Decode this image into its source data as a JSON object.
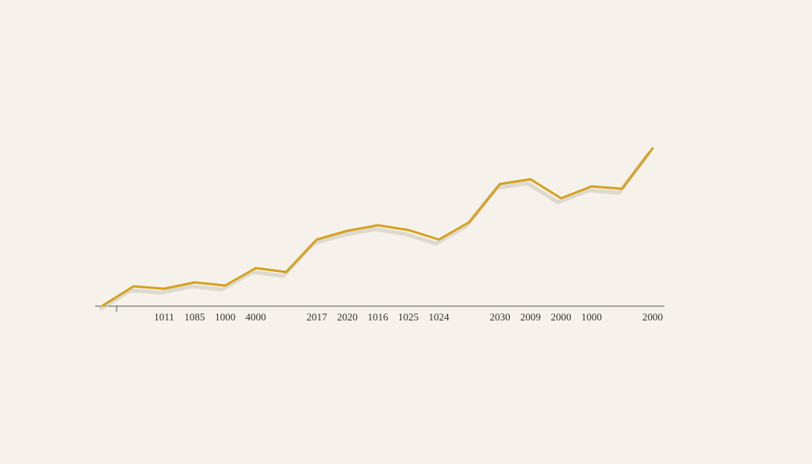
{
  "chart_data": {
    "type": "line",
    "categories": [
      null,
      null,
      "1011",
      "1085",
      "1000",
      "4000",
      null,
      "2017",
      "2020",
      "1016",
      "1025",
      "1024",
      null,
      "2030",
      "2009",
      "2000",
      "1000",
      null,
      "2000"
    ],
    "values": [
      0,
      12,
      10.5,
      14.5,
      12.5,
      23.5,
      21,
      41.5,
      47,
      50.5,
      47.5,
      41.5,
      52.5,
      76.5,
      79.5,
      67.5,
      75,
      73.5,
      99
    ],
    "color": "#d9a521",
    "ylim": [
      0,
      100
    ]
  }
}
